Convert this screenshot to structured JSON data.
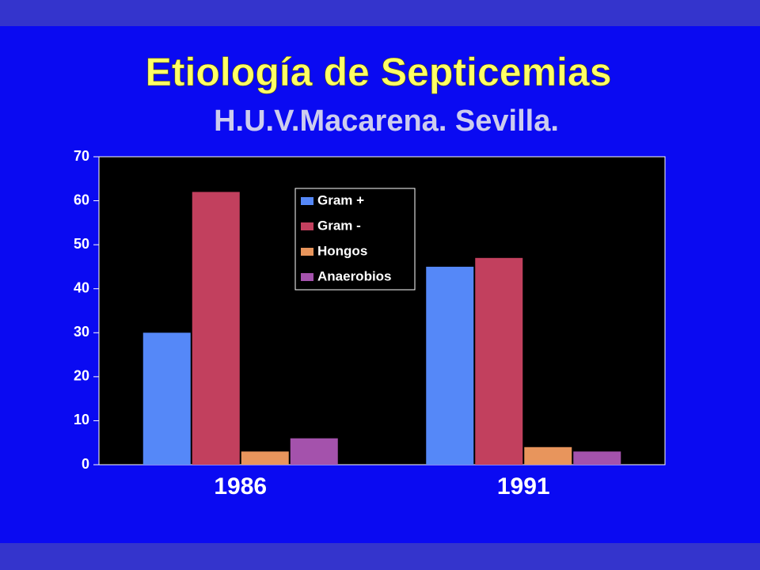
{
  "chart_data": {
    "type": "bar",
    "title": "Etiología de Septicemias",
    "subtitle": "H.U.V.Macarena. Sevilla.",
    "categories": [
      "1986",
      "1991"
    ],
    "series": [
      {
        "name": "Gram +",
        "color": "#5588f8",
        "values": [
          30,
          45
        ]
      },
      {
        "name": "Gram -",
        "color": "#c2405e",
        "values": [
          62,
          47
        ]
      },
      {
        "name": "Hongos",
        "color": "#e8955c",
        "values": [
          3,
          4
        ]
      },
      {
        "name": "Anaerobios",
        "color": "#a452ac",
        "values": [
          6,
          3
        ]
      }
    ],
    "ylim": [
      0,
      70
    ],
    "yticks": [
      0,
      10,
      20,
      30,
      40,
      50,
      60,
      70
    ],
    "grid": false,
    "legend": "upper-center"
  }
}
